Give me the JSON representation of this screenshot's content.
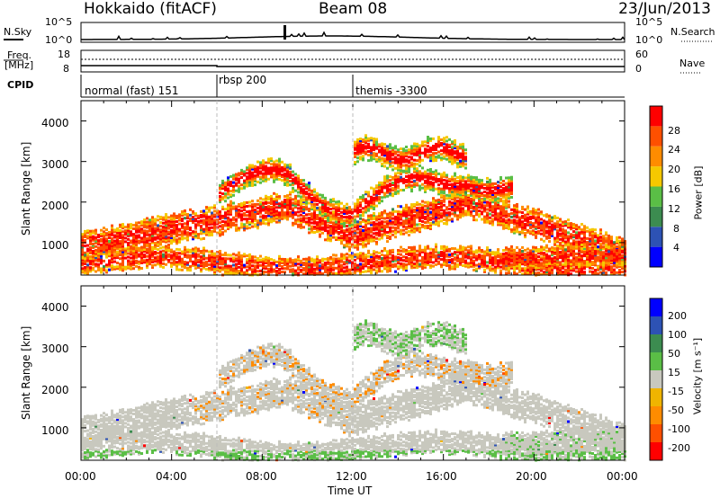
{
  "header": {
    "station": "Hokkaido (fitACF)",
    "beam": "Beam 08",
    "date": "23/Jun/2013"
  },
  "noise_panel": {
    "left_label": "N.Sky",
    "left_ticks": [
      "10^5",
      "10^0"
    ],
    "right_ticks": [
      "10^5",
      "10^0"
    ],
    "right_label": "N.Search"
  },
  "freq_panel": {
    "left_label_1": "Freq.",
    "left_label_2": "[MHz]",
    "left_ticks": [
      "18",
      "8"
    ],
    "right_ticks": [
      "60",
      "0"
    ],
    "right_label": "Nave"
  },
  "cpid": {
    "label": "CPID",
    "modes": [
      "normal (fast) 151",
      "rbsp 200",
      "themis -3300"
    ]
  },
  "colors": {
    "power_scale": [
      "#0000ff",
      "#2d52b4",
      "#3c8c50",
      "#5abe46",
      "#f5c800",
      "#ff8c00",
      "#ff5000",
      "#ff0000"
    ],
    "velocity_scale": [
      "#ff0000",
      "#ff5000",
      "#ff8c00",
      "#f0b400",
      "#c8c8be",
      "#5abe46",
      "#3c8c50",
      "#2d52b4",
      "#0000ff"
    ],
    "ground_scatter": "#c8c8be"
  },
  "chart_data": [
    {
      "type": "heatmap",
      "name": "power",
      "ylabel": "Slant Range [km]",
      "xlabel": "Time UT",
      "x_ticks": [
        "00:00",
        "04:00",
        "08:00",
        "12:00",
        "16:00",
        "20:00",
        "00:00"
      ],
      "y_ticks": [
        "1000",
        "2000",
        "3000",
        "4000"
      ],
      "ylim": [
        200,
        4500
      ],
      "colorbar_label": "Power [dB]",
      "colorbar_ticks": [
        "28",
        "24",
        "20",
        "16",
        "12",
        "8",
        "4"
      ],
      "colorbar_range": [
        0,
        30
      ]
    },
    {
      "type": "heatmap",
      "name": "velocity",
      "ylabel": "Slant Range [km]",
      "xlabel": "Time UT",
      "x_ticks": [
        "00:00",
        "04:00",
        "08:00",
        "12:00",
        "16:00",
        "20:00",
        "00:00"
      ],
      "y_ticks": [
        "1000",
        "2000",
        "3000",
        "4000"
      ],
      "ylim": [
        200,
        4500
      ],
      "colorbar_label": "Velocity [m s⁻¹]",
      "colorbar_ticks": [
        "200",
        "100",
        "50",
        "15",
        "-15",
        "-50",
        "-100",
        "-200"
      ],
      "colorbar_range": [
        -250,
        250
      ]
    }
  ]
}
